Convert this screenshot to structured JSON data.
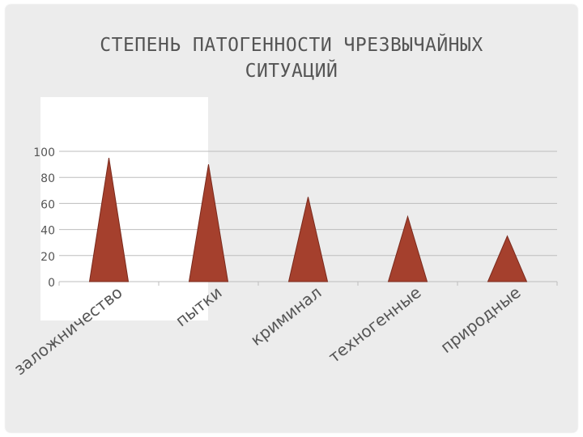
{
  "title": "СТЕПЕНЬ ПАТОГЕННОСТИ ЧРЕЗВЫЧАЙНЫХ\nСИТУАЦИЙ",
  "colors": {
    "bar": "#a5402d",
    "bar_edge": "#7a2a1d",
    "grid": "#bdbdbd",
    "text": "#555555"
  },
  "chart_data": {
    "type": "bar",
    "shape": "cone",
    "categories": [
      "заложничество",
      "пытки",
      "криминал",
      "техногенные",
      "природные"
    ],
    "values": [
      95,
      90,
      65,
      50,
      35
    ],
    "title": "",
    "xlabel": "",
    "ylabel": "",
    "ylim": [
      0,
      100
    ],
    "yticks": [
      "0",
      "20",
      "40",
      "60",
      "80",
      "100"
    ],
    "grid": true,
    "legend": "none"
  }
}
